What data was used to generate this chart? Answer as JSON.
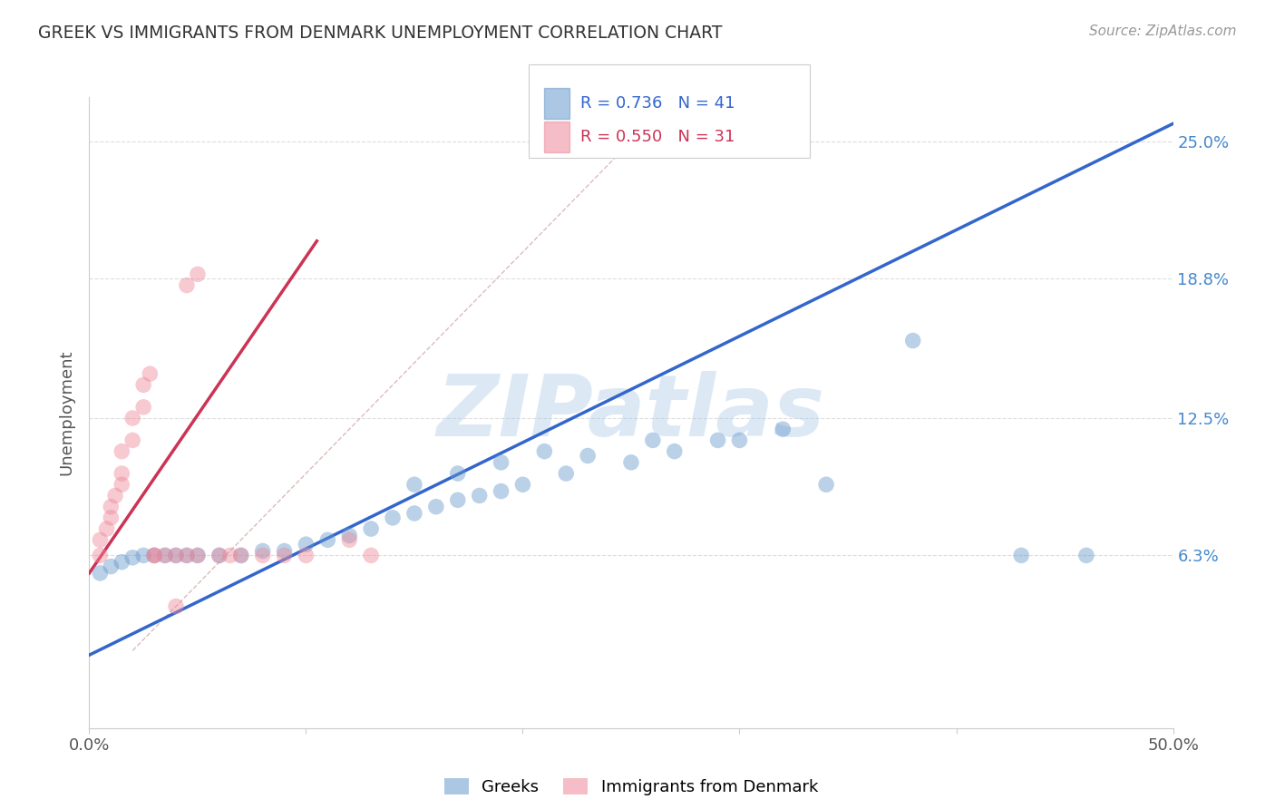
{
  "title": "GREEK VS IMMIGRANTS FROM DENMARK UNEMPLOYMENT CORRELATION CHART",
  "source": "Source: ZipAtlas.com",
  "ylabel": "Unemployment",
  "xlim": [
    0,
    0.5
  ],
  "ylim": [
    -0.015,
    0.27
  ],
  "y_tick_labels_right": [
    "6.3%",
    "12.5%",
    "18.8%",
    "25.0%"
  ],
  "y_tick_vals_right": [
    0.063,
    0.125,
    0.188,
    0.25
  ],
  "watermark": "ZIPatlas",
  "watermark_color": "#a8c8e8",
  "legend_label_greek": "Greeks",
  "legend_label_denmark": "Immigrants from Denmark",
  "blue_color": "#6699cc",
  "pink_color": "#ee8899",
  "blue_line_color": "#3366cc",
  "pink_line_color": "#cc3355",
  "diag_line_color": "#cccccc",
  "background_color": "#ffffff",
  "grid_color": "#dddddd",
  "title_color": "#333333",
  "source_color": "#999999",
  "blue_scatter_x": [
    0.005,
    0.01,
    0.015,
    0.02,
    0.025,
    0.03,
    0.035,
    0.04,
    0.045,
    0.05,
    0.06,
    0.07,
    0.08,
    0.09,
    0.1,
    0.11,
    0.12,
    0.13,
    0.14,
    0.15,
    0.16,
    0.17,
    0.18,
    0.19,
    0.2,
    0.22,
    0.25,
    0.27,
    0.29,
    0.32,
    0.15,
    0.17,
    0.19,
    0.21,
    0.23,
    0.26,
    0.3,
    0.34,
    0.38,
    0.43,
    0.46
  ],
  "blue_scatter_y": [
    0.055,
    0.058,
    0.06,
    0.062,
    0.063,
    0.063,
    0.063,
    0.063,
    0.063,
    0.063,
    0.063,
    0.063,
    0.065,
    0.065,
    0.068,
    0.07,
    0.072,
    0.075,
    0.08,
    0.082,
    0.085,
    0.088,
    0.09,
    0.092,
    0.095,
    0.1,
    0.105,
    0.11,
    0.115,
    0.12,
    0.095,
    0.1,
    0.105,
    0.11,
    0.108,
    0.115,
    0.115,
    0.095,
    0.16,
    0.063,
    0.063
  ],
  "pink_scatter_x": [
    0.005,
    0.005,
    0.008,
    0.01,
    0.01,
    0.012,
    0.015,
    0.015,
    0.015,
    0.02,
    0.02,
    0.025,
    0.025,
    0.028,
    0.03,
    0.03,
    0.035,
    0.04,
    0.04,
    0.045,
    0.05,
    0.06,
    0.065,
    0.07,
    0.08,
    0.09,
    0.1,
    0.12,
    0.13,
    0.045,
    0.05
  ],
  "pink_scatter_y": [
    0.063,
    0.07,
    0.075,
    0.08,
    0.085,
    0.09,
    0.095,
    0.1,
    0.11,
    0.115,
    0.125,
    0.13,
    0.14,
    0.145,
    0.063,
    0.063,
    0.063,
    0.063,
    0.04,
    0.063,
    0.063,
    0.063,
    0.063,
    0.063,
    0.063,
    0.063,
    0.063,
    0.07,
    0.063,
    0.185,
    0.19
  ],
  "blue_line_x": [
    0.0,
    0.5
  ],
  "blue_line_y": [
    0.018,
    0.258
  ],
  "pink_line_x": [
    0.0,
    0.105
  ],
  "pink_line_y": [
    0.055,
    0.205
  ],
  "diag_line_x": [
    0.02,
    0.265
  ],
  "diag_line_y": [
    0.02,
    0.265
  ]
}
